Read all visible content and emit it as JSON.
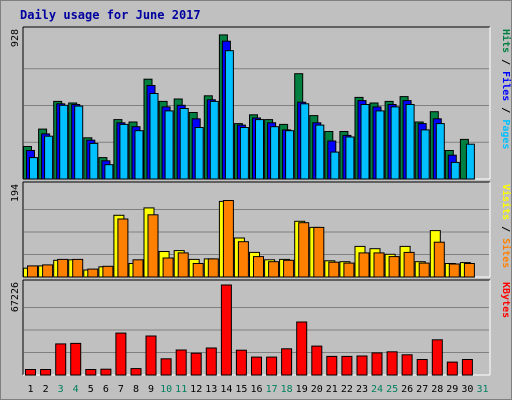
{
  "chart_data": {
    "title": "Daily usage for June 2017",
    "categories": [
      "1",
      "2",
      "3",
      "4",
      "5",
      "6",
      "7",
      "8",
      "9",
      "10",
      "11",
      "12",
      "13",
      "14",
      "15",
      "16",
      "17",
      "18",
      "19",
      "20",
      "21",
      "22",
      "23",
      "24",
      "25",
      "26",
      "27",
      "28",
      "29",
      "30",
      "31"
    ],
    "weekend_days": [
      "3",
      "4",
      "10",
      "11",
      "17",
      "18",
      "24",
      "25",
      "31"
    ],
    "panels": [
      {
        "type": "bar",
        "max_label": "928",
        "ylim": [
          0,
          928
        ],
        "legend": [
          "Pages",
          "Files",
          "Hits"
        ],
        "series": [
          {
            "name": "Hits",
            "color": "#008040",
            "values": [
              205,
              315,
              490,
              480,
              260,
              135,
              375,
              360,
              630,
              490,
              505,
              420,
              525,
              910,
              350,
              405,
              375,
              345,
              665,
              400,
              300,
              300,
              515,
              480,
              490,
              520,
              360,
              425,
              180,
              250,
              0
            ]
          },
          {
            "name": "Files",
            "color": "#0000ff",
            "values": [
              180,
              285,
              475,
              470,
              245,
              115,
              355,
              330,
              590,
              455,
              465,
              380,
              500,
              870,
              340,
              385,
              355,
              310,
              485,
              355,
              240,
              275,
              495,
              455,
              470,
              495,
              350,
              380,
              150,
              0,
              0
            ]
          },
          {
            "name": "Pages",
            "color": "#00c0ff",
            "values": [
              135,
              270,
              465,
              460,
              225,
              90,
              345,
              305,
              540,
              430,
              445,
              325,
              490,
              810,
              325,
              375,
              330,
              305,
              475,
              340,
              170,
              265,
              470,
              430,
              455,
              470,
              310,
              350,
              105,
              220,
              0
            ]
          }
        ]
      },
      {
        "type": "bar",
        "max_label": "194",
        "ylim": [
          0,
          194
        ],
        "legend": [
          "Sites",
          "Visits"
        ],
        "series": [
          {
            "name": "Visits",
            "color": "#ffff00",
            "values": [
              19,
              24,
              36,
              37,
              15,
              22,
              133,
              29,
              149,
              55,
              57,
              38,
              39,
              163,
              84,
              53,
              37,
              38,
              120,
              107,
              35,
              33,
              66,
              61,
              49,
              66,
              33,
              100,
              29,
              31,
              0
            ]
          },
          {
            "name": "Sites",
            "color": "#ff8000",
            "values": [
              24,
              26,
              38,
              38,
              17,
              23,
              125,
              37,
              134,
              41,
              52,
              29,
              39,
              165,
              76,
              44,
              33,
              36,
              117,
              107,
              32,
              30,
              52,
              52,
              44,
              53,
              30,
              75,
              28,
              29,
              0
            ]
          }
        ]
      },
      {
        "type": "bar",
        "max_label": "67226",
        "ylim": [
          0,
          67226
        ],
        "legend": [
          "KBytes"
        ],
        "series": [
          {
            "name": "KBytes",
            "color": "#ff0000",
            "values": [
              4100,
              4100,
              23200,
              23600,
              4100,
              4300,
              31300,
              4800,
              29100,
              12100,
              18700,
              16300,
              20200,
              67226,
              18500,
              13400,
              13400,
              19600,
              39600,
              21600,
              13900,
              13900,
              14200,
              16500,
              17300,
              15100,
              11600,
              26300,
              9600,
              11600,
              0
            ]
          }
        ]
      }
    ]
  }
}
